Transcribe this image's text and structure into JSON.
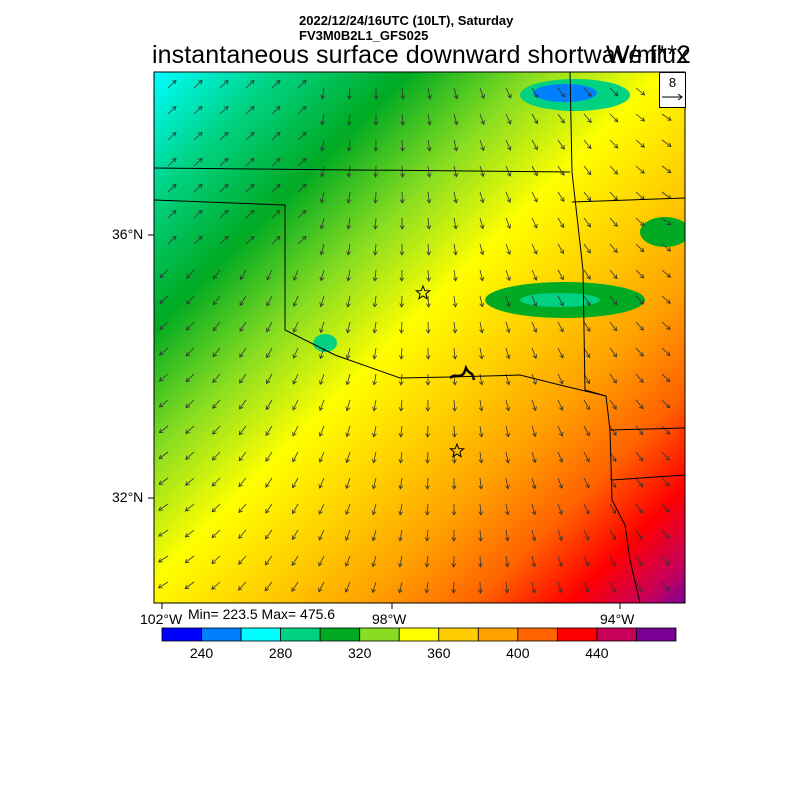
{
  "header": {
    "datetime": "2022/12/24/16UTC (10LT), Saturday",
    "model": "FV3M0B2L1_GFS025"
  },
  "title": "instantaneous surface downward shortwave flux",
  "units": "W/m**2",
  "stats": {
    "text": "Min= 223.5 Max= 475.6",
    "min": 223.5,
    "max": 475.6
  },
  "vector_reference": {
    "label": "8"
  },
  "axes": {
    "lat_labels": [
      "36°N",
      "32°N"
    ],
    "lon_labels": [
      "102°W",
      "98°W",
      "94°W"
    ]
  },
  "colorbar": {
    "colors": [
      "#0000ff",
      "#0080ff",
      "#00ffff",
      "#00d282",
      "#00aa22",
      "#88dd22",
      "#ffff00",
      "#ffcc00",
      "#ffa000",
      "#ff6400",
      "#ff0000",
      "#c8005a",
      "#7a0096"
    ],
    "tick_labels": [
      "240",
      "280",
      "320",
      "360",
      "400",
      "440"
    ],
    "tick_values": [
      240,
      280,
      320,
      360,
      400,
      440
    ],
    "level_start": 220,
    "level_step": 20
  },
  "markers": [
    {
      "type": "star",
      "name": "station-north"
    },
    {
      "type": "star",
      "name": "station-south"
    }
  ]
}
